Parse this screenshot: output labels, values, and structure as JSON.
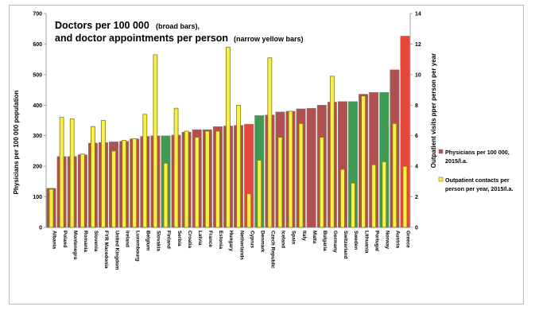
{
  "chart_data": {
    "type": "bar",
    "title_line1": "Doctors per 100 000",
    "title_line1_small": "(broad bars),",
    "title_line2": "and doctor appointments per person",
    "title_line2_small": "(narrow yellow bars)",
    "ylabel_left": "Physicians per 100 000 population",
    "ylabel_right": "Outpatient visits pper person per year",
    "ylim_left": [
      0,
      700
    ],
    "ylim_right": [
      0,
      14
    ],
    "yticks_left": [
      "0",
      "100",
      "200",
      "300",
      "400",
      "500",
      "600",
      "700"
    ],
    "yticks_right": [
      "0",
      "2",
      "4",
      "6",
      "8",
      "10",
      "12",
      "14"
    ],
    "legend_placement": "right",
    "grid": false,
    "categories": [
      "Albania",
      "Poland",
      "Montenegro",
      "Romania",
      "Slovenia",
      "FYR Macedonia",
      "United Kingdom",
      "Ireland",
      "Luxembourg",
      "Belgium",
      "Slovakia",
      "Finland",
      "Serbia",
      "Croatia",
      "Latvia",
      "France",
      "Estonia",
      "Hungary",
      "Netherlands",
      "Cyprus",
      "Denmark",
      "Czech Republic",
      "Iceland",
      "Spain",
      "Italy",
      "Malta",
      "Bulgaria",
      "Germany",
      "Switzerland",
      "Sweden",
      "Lithuania",
      "Portugal",
      "Norway",
      "Austria",
      "Greece"
    ],
    "series": [
      {
        "name": "Physicians per 100 000, 2015/l.a.",
        "axis": "left",
        "values": [
          128,
          232,
          232,
          238,
          276,
          278,
          280,
          282,
          290,
          298,
          300,
          300,
          302,
          312,
          320,
          320,
          330,
          332,
          334,
          338,
          366,
          368,
          378,
          380,
          388,
          390,
          400,
          410,
          412,
          412,
          436,
          442,
          442,
          516,
          626
        ],
        "colors": [
          "#b05050",
          "#b05050",
          "#b05050",
          "#b05050",
          "#b05050",
          "#b05050",
          "#b05050",
          "#b05050",
          "#b05050",
          "#b05050",
          "#b05050",
          "#3f9a52",
          "#b05050",
          "#b05050",
          "#b05050",
          "#b05050",
          "#b05050",
          "#b05050",
          "#b05050",
          "#e5483a",
          "#3f9a52",
          "#b05050",
          "#b05050",
          "#b05050",
          "#b05050",
          "#b05050",
          "#b05050",
          "#b05050",
          "#b05050",
          "#3f9a52",
          "#b05050",
          "#b05050",
          "#3f9a52",
          "#b05050",
          "#e5483a"
        ]
      },
      {
        "name": "Outpatient contacts per person per year, 2015/l.a.",
        "axis": "right",
        "values": [
          2.5,
          7.2,
          7.1,
          4.8,
          6.6,
          7.0,
          5.0,
          5.7,
          5.8,
          7.4,
          11.3,
          4.2,
          7.8,
          6.3,
          5.9,
          6.3,
          6.3,
          11.8,
          8.0,
          2.2,
          4.4,
          11.1,
          5.9,
          7.6,
          6.8,
          null,
          5.9,
          9.9,
          3.8,
          2.9,
          8.6,
          4.1,
          4.3,
          6.8,
          4.0
        ],
        "color": "#f7f04a"
      }
    ]
  },
  "style": {
    "yellow_bar_outline": "#8a7a00",
    "broad_bar_outline": "#7a7a7a"
  }
}
